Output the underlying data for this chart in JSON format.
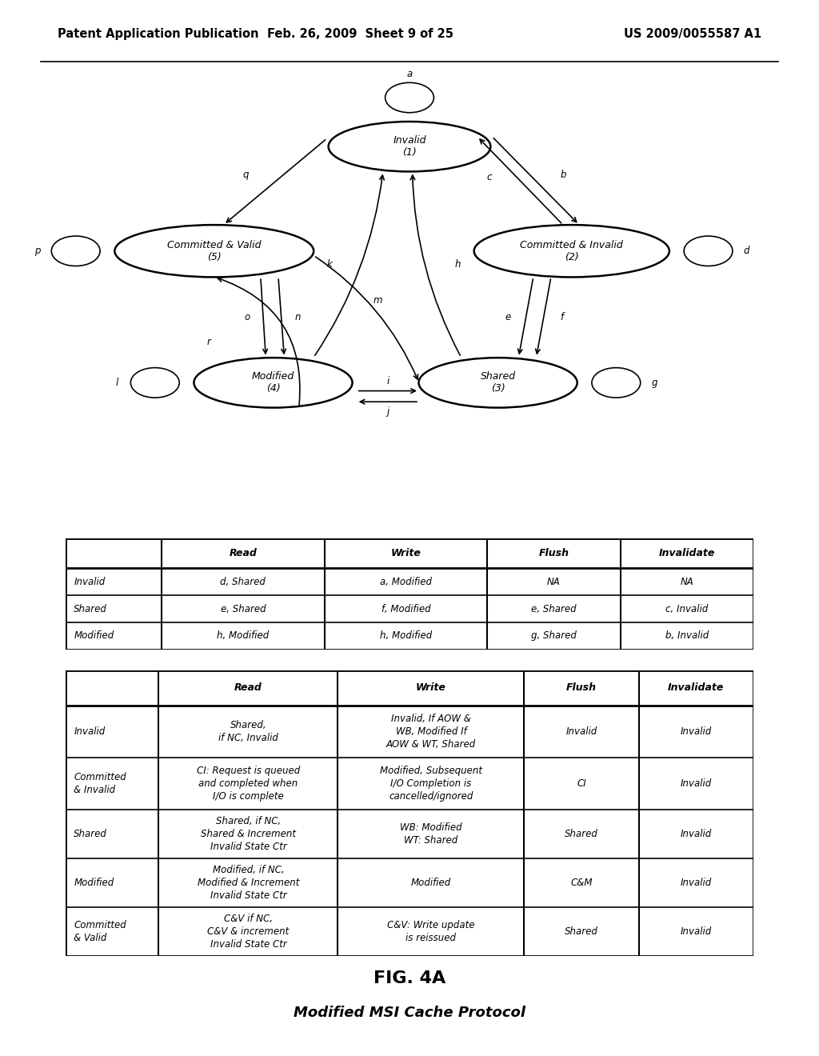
{
  "header_left": "Patent Application Publication",
  "header_center": "Feb. 26, 2009  Sheet 9 of 25",
  "header_right": "US 2009/0055587 A1",
  "fig_label": "FIG. 4A",
  "fig_sublabel": "Modified MSI Cache Protocol",
  "table1_headers": [
    "",
    "Read",
    "Write",
    "Flush",
    "Invalidate"
  ],
  "table1_rows": [
    [
      "Invalid",
      "d, Shared",
      "a, Modified",
      "NA",
      "NA"
    ],
    [
      "Shared",
      "e, Shared",
      "f, Modified",
      "e, Shared",
      "c, Invalid"
    ],
    [
      "Modified",
      "h, Modified",
      "h, Modified",
      "g, Shared",
      "b, Invalid"
    ]
  ],
  "table2_headers": [
    "",
    "Read",
    "Write",
    "Flush",
    "Invalidate"
  ],
  "table2_rows": [
    [
      "Invalid",
      "Shared,\nif NC, Invalid",
      "Invalid, If AOW &\nWB, Modified If\nAOW & WT, Shared",
      "Invalid",
      "Invalid"
    ],
    [
      "Committed\n& Invalid",
      "CI: Request is queued\nand completed when\nI/O is complete",
      "Modified, Subsequent\nI/O Completion is\ncancelled/ignored",
      "CI",
      "Invalid"
    ],
    [
      "Shared",
      "Shared, if NC,\nShared & Increment\nInvalid State Ctr",
      "WB: Modified\nWT: Shared",
      "Shared",
      "Invalid"
    ],
    [
      "Modified",
      "Modified, if NC,\nModified & Increment\nInvalid State Ctr",
      "Modified",
      "C&M",
      "Invalid"
    ],
    [
      "Committed\n& Valid",
      "C&V if NC,\nC&V & increment\nInvalid State Ctr",
      "C&V: Write update\nis reissued",
      "Shared",
      "Invalid"
    ]
  ]
}
